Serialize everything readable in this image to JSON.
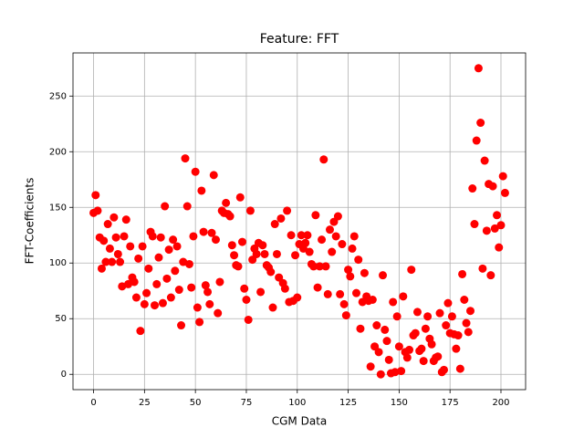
{
  "chart_data": {
    "type": "scatter",
    "title": "Feature: FFT",
    "x_label": "CGM Data",
    "y_label": "FFT-Coefficients",
    "x": [
      0,
      1,
      2,
      3,
      4,
      5,
      6,
      7,
      8,
      9,
      10,
      11,
      12,
      13,
      14,
      15,
      16,
      17,
      18,
      19,
      20,
      21,
      22,
      23,
      24,
      25,
      26,
      27,
      28,
      29,
      30,
      31,
      32,
      33,
      34,
      35,
      36,
      37,
      38,
      39,
      40,
      41,
      42,
      43,
      44,
      45,
      46,
      47,
      48,
      49,
      50,
      51,
      52,
      53,
      54,
      55,
      56,
      57,
      58,
      59,
      60,
      61,
      62,
      63,
      64,
      65,
      66,
      67,
      68,
      69,
      70,
      71,
      72,
      73,
      74,
      75,
      76,
      77,
      78,
      79,
      80,
      81,
      82,
      83,
      84,
      85,
      86,
      87,
      88,
      89,
      90,
      91,
      92,
      93,
      94,
      95,
      96,
      97,
      98,
      99,
      100,
      101,
      102,
      103,
      104,
      105,
      106,
      107,
      108,
      109,
      110,
      111,
      112,
      113,
      114,
      115,
      116,
      117,
      118,
      119,
      120,
      121,
      122,
      123,
      124,
      125,
      126,
      127,
      128,
      129,
      130,
      131,
      132,
      133,
      134,
      135,
      136,
      137,
      138,
      139,
      140,
      141,
      142,
      143,
      144,
      145,
      146,
      147,
      148,
      149,
      150,
      151,
      152,
      153,
      154,
      155,
      156,
      157,
      158,
      159,
      160,
      161,
      162,
      163,
      164,
      165,
      166,
      167,
      168,
      169,
      170,
      171,
      172,
      173,
      174,
      175,
      176,
      177,
      178,
      179,
      180,
      181,
      182,
      183,
      184,
      185,
      186,
      187,
      188,
      189,
      190,
      191,
      192,
      193,
      194,
      195,
      196,
      197,
      198,
      199,
      200,
      201,
      202
    ],
    "values": [
      145,
      161,
      147,
      123,
      95,
      120,
      101,
      135,
      113,
      101,
      141,
      123,
      108,
      101,
      79,
      124,
      139,
      81,
      115,
      87,
      83,
      69,
      104,
      39,
      115,
      63,
      73,
      95,
      128,
      124,
      62,
      81,
      105,
      123,
      64,
      151,
      86,
      112,
      69,
      121,
      93,
      115,
      76,
      44,
      101,
      194,
      151,
      99,
      78,
      124,
      182,
      60,
      47,
      165,
      128,
      80,
      74,
      63,
      127,
      179,
      121,
      55,
      83,
      147,
      145,
      154,
      144,
      142,
      116,
      107,
      98,
      97,
      159,
      119,
      77,
      67,
      49,
      147,
      103,
      113,
      108,
      118,
      74,
      116,
      108,
      98,
      96,
      92,
      60,
      135,
      108,
      87,
      140,
      82,
      77,
      147,
      65,
      125,
      66,
      107,
      69,
      117,
      125,
      113,
      118,
      125,
      110,
      99,
      97,
      143,
      78,
      97,
      121,
      193,
      97,
      72,
      130,
      110,
      137,
      124,
      142,
      72,
      117,
      63,
      53,
      94,
      88,
      113,
      124,
      73,
      103,
      41,
      65,
      91,
      70,
      66,
      7,
      67,
      25,
      44,
      20,
      0,
      89,
      40,
      30,
      13,
      1,
      65,
      2,
      52,
      25,
      3,
      70,
      20,
      15,
      22,
      94,
      35,
      37,
      56,
      21,
      23,
      12,
      41,
      52,
      32,
      27,
      12,
      15,
      16,
      55,
      2,
      4,
      44,
      64,
      37,
      52,
      36,
      23,
      35,
      5,
      90,
      67,
      46,
      38,
      57,
      167,
      135,
      210,
      275,
      226,
      95,
      192,
      129,
      171,
      89,
      169,
      131,
      143,
      114,
      134,
      178,
      163
    ],
    "color": "#ff0000",
    "xlim": [
      -10.1,
      212.1
    ],
    "ylim": [
      -13.75,
      288.75
    ],
    "xticks": [
      0,
      25,
      50,
      75,
      100,
      125,
      150,
      175,
      200
    ],
    "yticks": [
      0,
      50,
      100,
      150,
      200,
      250
    ],
    "grid": true
  }
}
